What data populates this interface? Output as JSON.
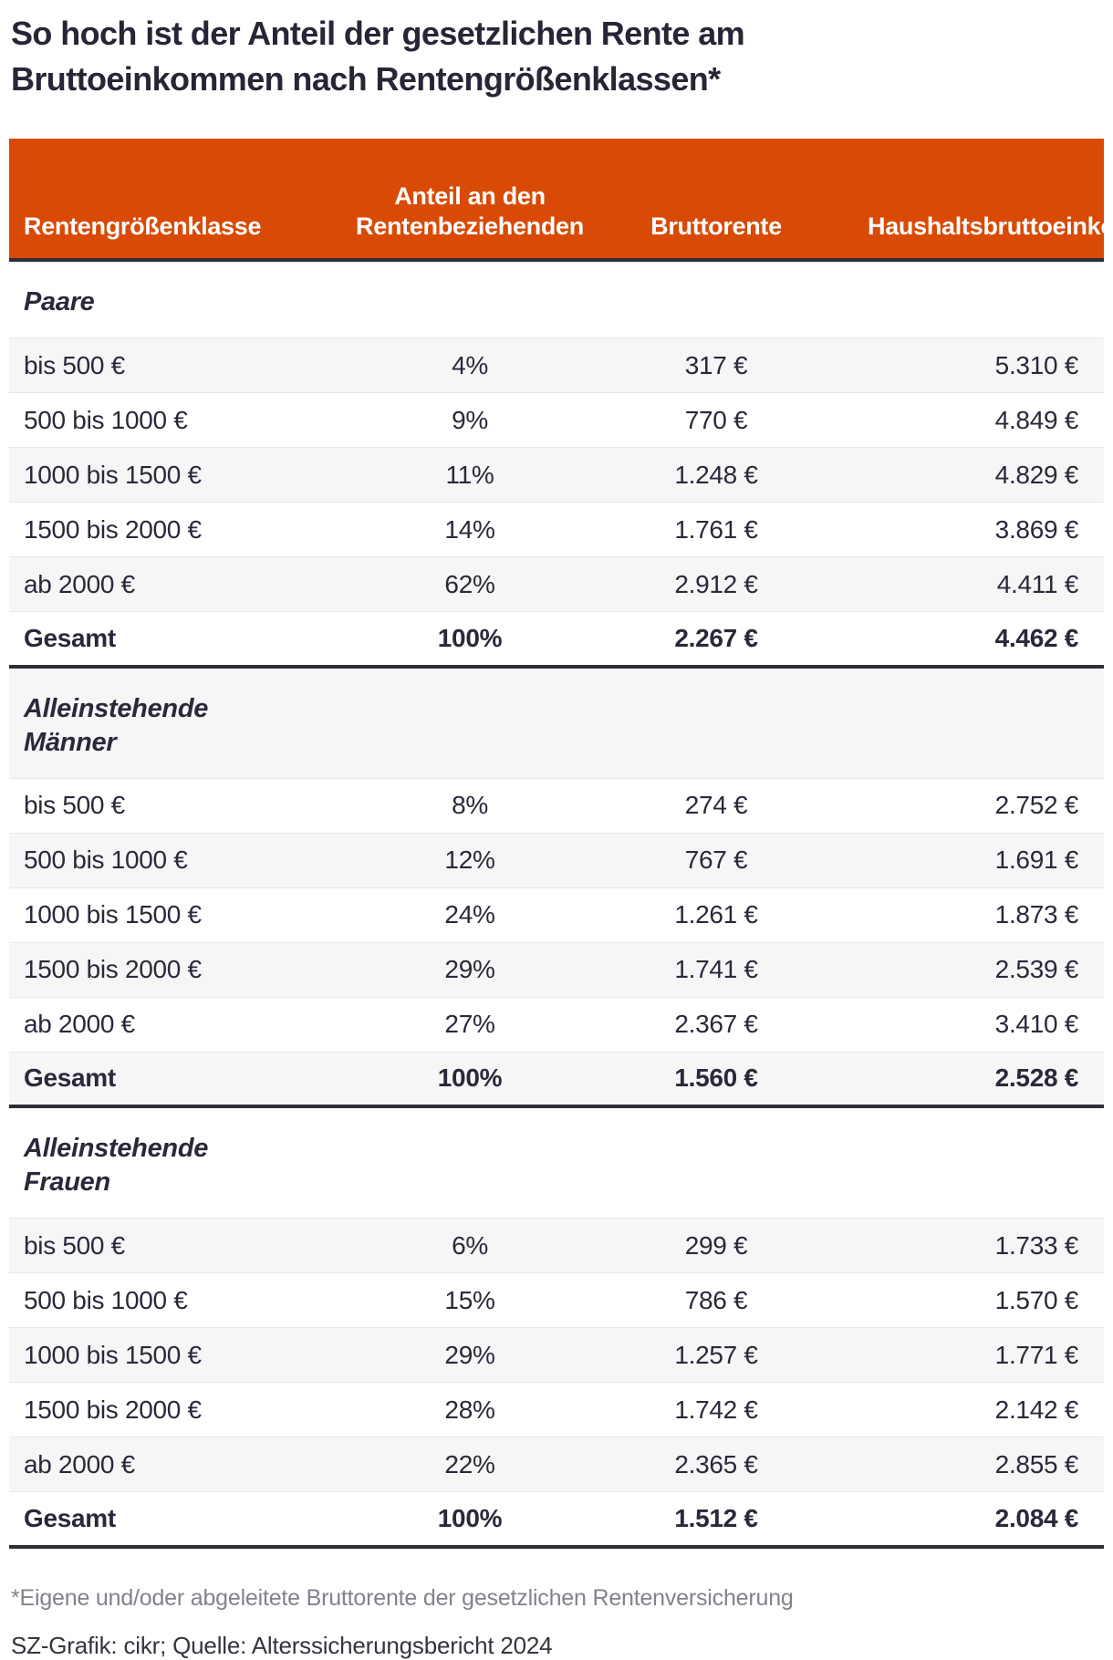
{
  "title": "So hoch ist der Anteil der gesetzlichen Rente am Bruttoeinkommen nach Rentengrößenklassen*",
  "footnote": "*Eigene und/oder abgeleitete Bruttorente der gesetzlichen Rentenversicherung",
  "source": "SZ-Grafik: cikr; Quelle: Alterssicherungsbericht 2024",
  "colors": {
    "header_background": "#d84a05",
    "header_text": "#ffffff",
    "body_text": "#29293a",
    "row_stripe": "#f6f6f7",
    "divider": "#2e2e36",
    "footnote_text": "#82828e"
  },
  "table": {
    "columns": [
      "Rentengrößenklasse",
      "Anteil an den Rentenbeziehenden",
      "Bruttorente",
      "Haushaltsbruttoeinkommen"
    ],
    "sections": [
      {
        "label": "Paare",
        "rows": [
          [
            "bis 500 €",
            "4%",
            "317 €",
            "5.310 €"
          ],
          [
            "500 bis 1000 €",
            "9%",
            "770 €",
            "4.849 €"
          ],
          [
            "1000 bis 1500 €",
            "11%",
            "1.248 €",
            "4.829 €"
          ],
          [
            "1500 bis 2000 €",
            "14%",
            "1.761 €",
            "3.869 €"
          ],
          [
            "ab 2000 €",
            "62%",
            "2.912 €",
            "4.411 €"
          ]
        ],
        "total": [
          "Gesamt",
          "100%",
          "2.267 €",
          "4.462 €"
        ]
      },
      {
        "label": "Alleinstehende\nMänner",
        "rows": [
          [
            "bis 500 €",
            "8%",
            "274 €",
            "2.752 €"
          ],
          [
            "500 bis 1000 €",
            "12%",
            "767 €",
            "1.691 €"
          ],
          [
            "1000 bis 1500 €",
            "24%",
            "1.261 €",
            "1.873 €"
          ],
          [
            "1500 bis 2000 €",
            "29%",
            "1.741 €",
            "2.539 €"
          ],
          [
            "ab 2000 €",
            "27%",
            "2.367 €",
            "3.410 €"
          ]
        ],
        "total": [
          "Gesamt",
          "100%",
          "1.560 €",
          "2.528 €"
        ]
      },
      {
        "label": "Alleinstehende\nFrauen",
        "rows": [
          [
            "bis 500 €",
            "6%",
            "299 €",
            "1.733 €"
          ],
          [
            "500 bis 1000 €",
            "15%",
            "786 €",
            "1.570 €"
          ],
          [
            "1000 bis 1500 €",
            "29%",
            "1.257 €",
            "1.771 €"
          ],
          [
            "1500 bis 2000 €",
            "28%",
            "1.742 €",
            "2.142 €"
          ],
          [
            "ab 2000 €",
            "22%",
            "2.365 €",
            "2.855 €"
          ]
        ],
        "total": [
          "Gesamt",
          "100%",
          "1.512 €",
          "2.084 €"
        ]
      }
    ]
  },
  "chart_data": {
    "type": "table",
    "title": "So hoch ist der Anteil der gesetzlichen Rente am Bruttoeinkommen nach Rentengrößenklassen*",
    "columns": [
      "Rentengrößenklasse",
      "Anteil an den Rentenbeziehenden",
      "Bruttorente",
      "Haushaltsbruttoeinkommen"
    ],
    "groups": [
      {
        "name": "Paare",
        "rows": [
          {
            "klasse": "bis 500 €",
            "anteil_prozent": 4,
            "bruttorente_eur": 317,
            "haushaltsbrutto_eur": 5310
          },
          {
            "klasse": "500 bis 1000 €",
            "anteil_prozent": 9,
            "bruttorente_eur": 770,
            "haushaltsbrutto_eur": 4849
          },
          {
            "klasse": "1000 bis 1500 €",
            "anteil_prozent": 11,
            "bruttorente_eur": 1248,
            "haushaltsbrutto_eur": 4829
          },
          {
            "klasse": "1500 bis 2000 €",
            "anteil_prozent": 14,
            "bruttorente_eur": 1761,
            "haushaltsbrutto_eur": 3869
          },
          {
            "klasse": "ab 2000 €",
            "anteil_prozent": 62,
            "bruttorente_eur": 2912,
            "haushaltsbrutto_eur": 4411
          },
          {
            "klasse": "Gesamt",
            "anteil_prozent": 100,
            "bruttorente_eur": 2267,
            "haushaltsbrutto_eur": 4462
          }
        ]
      },
      {
        "name": "Alleinstehende Männer",
        "rows": [
          {
            "klasse": "bis 500 €",
            "anteil_prozent": 8,
            "bruttorente_eur": 274,
            "haushaltsbrutto_eur": 2752
          },
          {
            "klasse": "500 bis 1000 €",
            "anteil_prozent": 12,
            "bruttorente_eur": 767,
            "haushaltsbrutto_eur": 1691
          },
          {
            "klasse": "1000 bis 1500 €",
            "anteil_prozent": 24,
            "bruttorente_eur": 1261,
            "haushaltsbrutto_eur": 1873
          },
          {
            "klasse": "1500 bis 2000 €",
            "anteil_prozent": 29,
            "bruttorente_eur": 1741,
            "haushaltsbrutto_eur": 2539
          },
          {
            "klasse": "ab 2000 €",
            "anteil_prozent": 27,
            "bruttorente_eur": 2367,
            "haushaltsbrutto_eur": 3410
          },
          {
            "klasse": "Gesamt",
            "anteil_prozent": 100,
            "bruttorente_eur": 1560,
            "haushaltsbrutto_eur": 2528
          }
        ]
      },
      {
        "name": "Alleinstehende Frauen",
        "rows": [
          {
            "klasse": "bis 500 €",
            "anteil_prozent": 6,
            "bruttorente_eur": 299,
            "haushaltsbrutto_eur": 1733
          },
          {
            "klasse": "500 bis 1000 €",
            "anteil_prozent": 15,
            "bruttorente_eur": 786,
            "haushaltsbrutto_eur": 1570
          },
          {
            "klasse": "1000 bis 1500 €",
            "anteil_prozent": 29,
            "bruttorente_eur": 1257,
            "haushaltsbrutto_eur": 1771
          },
          {
            "klasse": "1500 bis 2000 €",
            "anteil_prozent": 28,
            "bruttorente_eur": 1742,
            "haushaltsbrutto_eur": 2142
          },
          {
            "klasse": "ab 2000 €",
            "anteil_prozent": 22,
            "bruttorente_eur": 2365,
            "haushaltsbrutto_eur": 2855
          },
          {
            "klasse": "Gesamt",
            "anteil_prozent": 100,
            "bruttorente_eur": 1512,
            "haushaltsbrutto_eur": 2084
          }
        ]
      }
    ],
    "footnote": "*Eigene und/oder abgeleitete Bruttorente der gesetzlichen Rentenversicherung",
    "source": "SZ-Grafik: cikr; Quelle: Alterssicherungsbericht 2024"
  }
}
